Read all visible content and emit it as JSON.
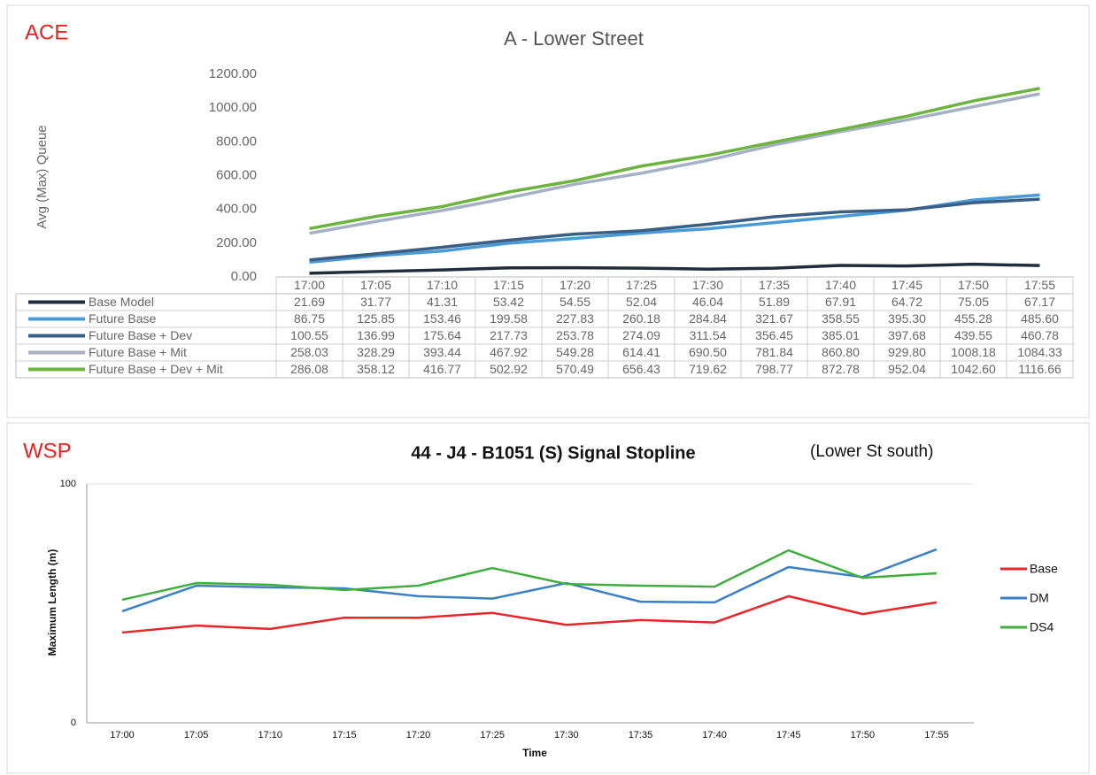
{
  "chart_data": [
    {
      "type": "line",
      "panel_label": "ACE",
      "title": "A - Lower Street",
      "y_label": "Avg (Max) Queue",
      "categories": [
        "17:00",
        "17:05",
        "17:10",
        "17:15",
        "17:20",
        "17:25",
        "17:30",
        "17:35",
        "17:40",
        "17:45",
        "17:50",
        "17:55"
      ],
      "ylim": [
        0,
        1200
      ],
      "yticks": [
        {
          "value": 0,
          "label": "0.00"
        },
        {
          "value": 200,
          "label": "200.00"
        },
        {
          "value": 400,
          "label": "400.00"
        },
        {
          "value": 600,
          "label": "600.00"
        },
        {
          "value": 800,
          "label": "800.00"
        },
        {
          "value": 1000,
          "label": "1000.00"
        },
        {
          "value": 1200,
          "label": "1200.00"
        }
      ],
      "grid": false,
      "legend": "table",
      "series": [
        {
          "name": "Base Model",
          "color": "#1f2d3d",
          "values": [
            21.69,
            31.77,
            41.31,
            53.42,
            54.55,
            52.04,
            46.04,
            51.89,
            67.91,
            64.72,
            75.05,
            67.17
          ],
          "value_labels": [
            "21.69",
            "31.77",
            "41.31",
            "53.42",
            "54.55",
            "52.04",
            "46.04",
            "51.89",
            "67.91",
            "64.72",
            "75.05",
            "67.17"
          ]
        },
        {
          "name": "Future Base",
          "color": "#4a9ad6",
          "values": [
            86.75,
            125.85,
            153.46,
            199.58,
            227.83,
            260.18,
            284.84,
            321.67,
            358.55,
            395.3,
            455.28,
            485.6
          ],
          "value_labels": [
            "86.75",
            "125.85",
            "153.46",
            "199.58",
            "227.83",
            "260.18",
            "284.84",
            "321.67",
            "358.55",
            "395.30",
            "455.28",
            "485.60"
          ]
        },
        {
          "name": "Future Base + Dev",
          "color": "#3a5f85",
          "values": [
            100.55,
            136.99,
            175.64,
            217.73,
            253.78,
            274.09,
            311.54,
            356.45,
            385.01,
            397.68,
            439.55,
            460.78
          ],
          "value_labels": [
            "100.55",
            "136.99",
            "175.64",
            "217.73",
            "253.78",
            "274.09",
            "311.54",
            "356.45",
            "385.01",
            "397.68",
            "439.55",
            "460.78"
          ]
        },
        {
          "name": "Future Base + Mit",
          "color": "#a6b0c4",
          "values": [
            258.03,
            328.29,
            393.44,
            467.92,
            549.28,
            614.41,
            690.5,
            781.84,
            860.8,
            929.8,
            1008.18,
            1084.33
          ],
          "value_labels": [
            "258.03",
            "328.29",
            "393.44",
            "467.92",
            "549.28",
            "614.41",
            "690.50",
            "781.84",
            "860.80",
            "929.80",
            "1008.18",
            "1084.33"
          ]
        },
        {
          "name": "Future Base + Dev + Mit",
          "color": "#6db33f",
          "values": [
            286.08,
            358.12,
            416.77,
            502.92,
            570.49,
            656.43,
            719.62,
            798.77,
            872.78,
            952.04,
            1042.6,
            1116.66
          ],
          "value_labels": [
            "286.08",
            "358.12",
            "416.77",
            "502.92",
            "570.49",
            "656.43",
            "719.62",
            "798.77",
            "872.78",
            "952.04",
            "1042.60",
            "1116.66"
          ]
        }
      ]
    },
    {
      "type": "line",
      "panel_label": "WSP",
      "title": "44 - J4 - B1051 (S) Signal Stopline",
      "subtitle": "(Lower St south)",
      "y_label": "Maximum Length (m)",
      "x_label": "Time",
      "categories": [
        "17:00",
        "17:05",
        "17:10",
        "17:15",
        "17:20",
        "17:25",
        "17:30",
        "17:35",
        "17:40",
        "17:45",
        "17:50",
        "17:55"
      ],
      "ylim": [
        0,
        100
      ],
      "yticks": [
        0,
        100
      ],
      "grid": true,
      "legend": "right",
      "series": [
        {
          "name": "Base",
          "color": "#e8262a",
          "values": [
            37.8,
            40.7,
            39.3,
            44,
            44,
            46,
            41,
            43,
            42,
            53,
            45.5,
            50.4
          ]
        },
        {
          "name": "DM",
          "color": "#3b7fc4",
          "values": [
            46.7,
            57.4,
            56.7,
            56.3,
            53,
            52,
            58.5,
            50.7,
            50.4,
            65.2,
            61,
            72.6
          ]
        },
        {
          "name": "DS4",
          "color": "#3fae3f",
          "values": [
            51.5,
            58.5,
            57.8,
            55.6,
            57.4,
            64.8,
            58.1,
            57.4,
            57,
            72.2,
            60.7,
            62.6
          ]
        }
      ]
    }
  ]
}
